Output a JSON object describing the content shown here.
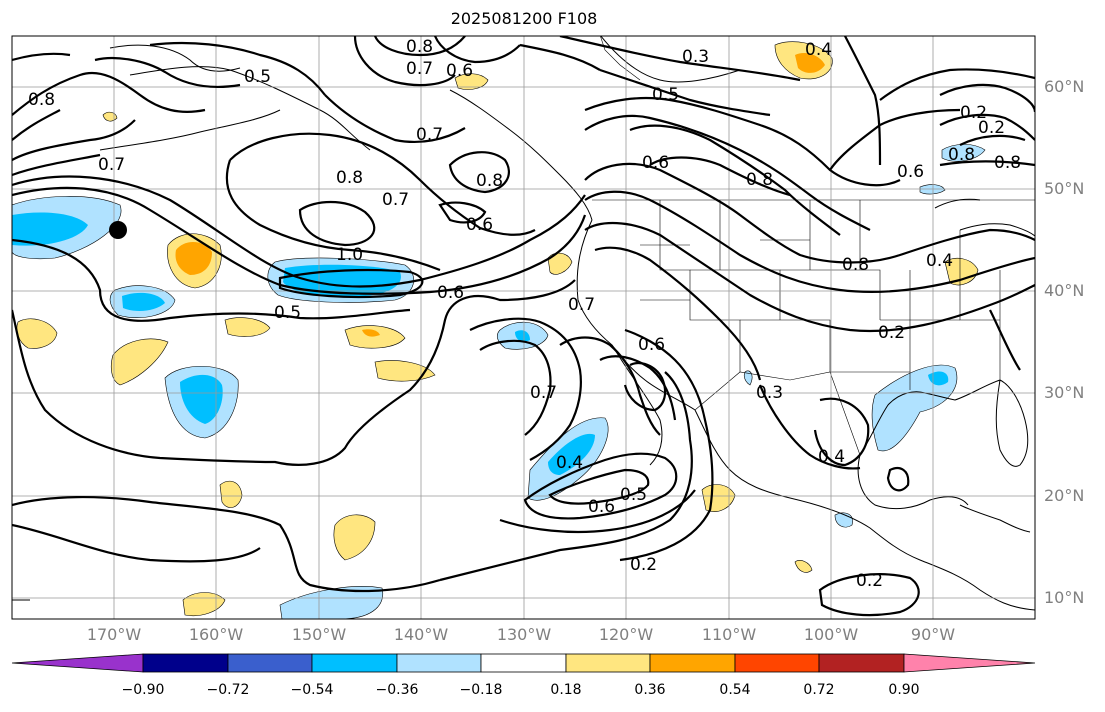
{
  "title": "2025081200 F108",
  "latitude_labels": [
    "60°N",
    "50°N",
    "40°N",
    "30°N",
    "20°N",
    "10°N"
  ],
  "longitude_labels": [
    "170°W",
    "160°W",
    "150°W",
    "140°W",
    "130°W",
    "120°W",
    "110°W",
    "100°W",
    "90°W"
  ],
  "colorbar": {
    "ticks": [
      "−0.90",
      "−0.72",
      "−0.54",
      "−0.36",
      "−0.18",
      "0.18",
      "0.36",
      "0.54",
      "0.72",
      "0.90"
    ],
    "colors": [
      "#9932cc",
      "#00008b",
      "#3a5fcd",
      "#00bfff",
      "#b0e2ff",
      "#ffffff",
      "#ffe680",
      "#ffa500",
      "#ff4500",
      "#b22222",
      "#ff82ab"
    ]
  },
  "contour_labels": [
    "0.8",
    "0.7",
    "0.6",
    "0.5",
    "0.3",
    "0.4",
    "0.2",
    "0.8",
    "0.7",
    "0.2",
    "0.8",
    "0.5",
    "0.8",
    "0.7",
    "0.8",
    "0.6",
    "0.6",
    "0.8",
    "0.6",
    "0.8",
    "0.7",
    "1.0",
    "0.6",
    "0.5",
    "0.4",
    "0.8",
    "0.2",
    "0.7",
    "0.6",
    "0.7",
    "0.3",
    "0.4",
    "0.4",
    "0.6",
    "0.5",
    "0.2",
    "0.2"
  ],
  "map": {
    "projection": "lat-lon",
    "extent": {
      "lon": [
        -178,
        -78
      ],
      "lat": [
        7.5,
        65
      ]
    },
    "shading": "anomaly filled contours",
    "lines": "black contours with labels",
    "marker": "black dot"
  }
}
